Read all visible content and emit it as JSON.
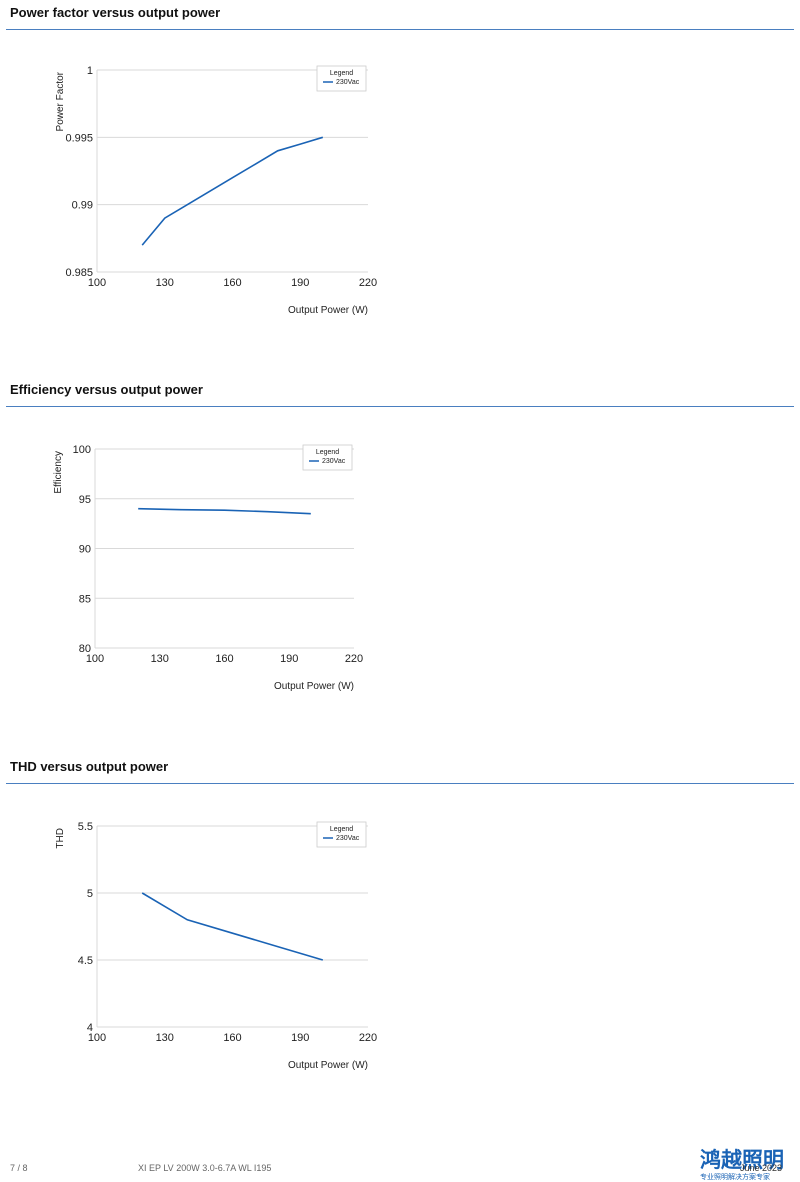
{
  "sections": [
    {
      "title": "Power factor versus output power"
    },
    {
      "title": "Efficiency versus output power"
    },
    {
      "title": "THD versus output power"
    }
  ],
  "footer": {
    "page": "7 / 8",
    "doc_title": "XI EP LV 200W 3.0-6.7A WL I195",
    "date": "June 2023",
    "watermark_main": "鸿越照明",
    "watermark_sub": "专业照明解决方案专家"
  },
  "colors": {
    "series": "#1a63b5",
    "grid": "#d9d9d9",
    "rule": "#4a7fc0"
  },
  "chart_data": [
    {
      "type": "line",
      "title": "Power factor versus output power",
      "xlabel": "Output Power (W)",
      "ylabel": "Power Factor",
      "xlim": [
        100,
        220
      ],
      "ylim": [
        0.985,
        1
      ],
      "xticks": [
        "100",
        "130",
        "160",
        "190",
        "220"
      ],
      "yticks": [
        "0.985",
        "0.99",
        "0.995",
        "1"
      ],
      "legend_title": "Legend",
      "legend_position": "top-right",
      "grid": true,
      "series": [
        {
          "name": "230Vac",
          "x": [
            120,
            130,
            140,
            150,
            160,
            170,
            180,
            190,
            200
          ],
          "y": [
            0.987,
            0.989,
            0.99,
            0.991,
            0.992,
            0.993,
            0.994,
            0.9945,
            0.995
          ]
        }
      ]
    },
    {
      "type": "line",
      "title": "Efficiency versus output power",
      "xlabel": "Output Power (W)",
      "ylabel": "Efficiency",
      "xlim": [
        100,
        220
      ],
      "ylim": [
        80,
        100
      ],
      "xticks": [
        "100",
        "130",
        "160",
        "190",
        "220"
      ],
      "yticks": [
        "80",
        "85",
        "90",
        "95",
        "100"
      ],
      "legend_title": "Legend",
      "legend_position": "top-right",
      "grid": true,
      "series": [
        {
          "name": "230Vac",
          "x": [
            120,
            140,
            160,
            180,
            200
          ],
          "y": [
            94.0,
            93.9,
            93.85,
            93.7,
            93.5
          ]
        }
      ]
    },
    {
      "type": "line",
      "title": "THD versus output power",
      "xlabel": "Output Power (W)",
      "ylabel": "THD",
      "xlim": [
        100,
        220
      ],
      "ylim": [
        4,
        5.5
      ],
      "xticks": [
        "100",
        "130",
        "160",
        "190",
        "220"
      ],
      "yticks": [
        "4",
        "4.5",
        "5",
        "5.5"
      ],
      "legend_title": "Legend",
      "legend_position": "top-right",
      "grid": true,
      "series": [
        {
          "name": "230Vac",
          "x": [
            120,
            130,
            140,
            160,
            180,
            200
          ],
          "y": [
            5.0,
            4.9,
            4.8,
            4.7,
            4.6,
            4.5
          ]
        }
      ]
    }
  ]
}
